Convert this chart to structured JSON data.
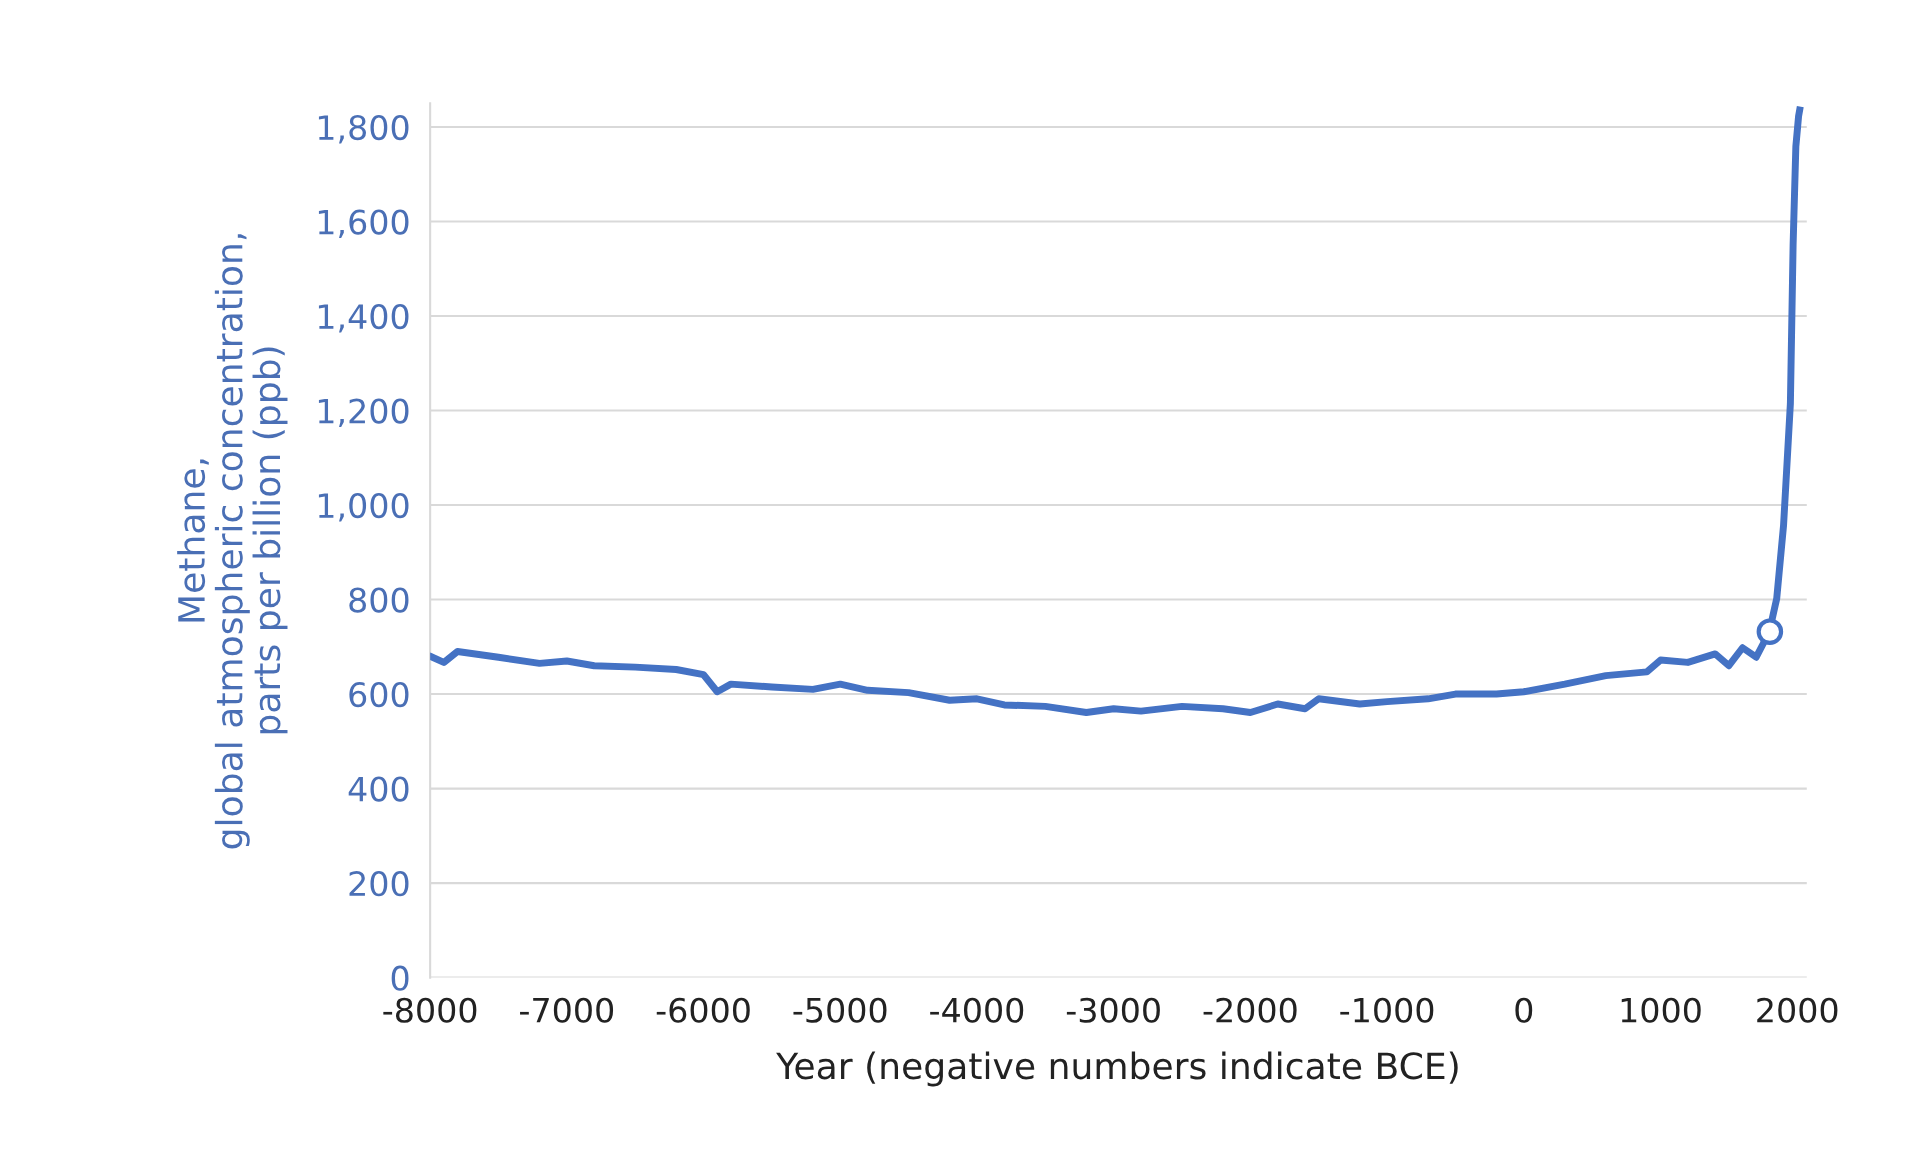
{
  "chart_data": {
    "type": "line",
    "xlabel": "Year (negative numbers indicate BCE)",
    "ylabel": "Methane,\nglobal atmospheric concentration,\nparts per billion (ppb)",
    "xlim": [
      -8000,
      2070
    ],
    "ylim": [
      0,
      1850
    ],
    "xticks": [
      -8000,
      -7000,
      -6000,
      -5000,
      -4000,
      -3000,
      -2000,
      -1000,
      0,
      1000,
      2000
    ],
    "yticks": [
      {
        "value": 0,
        "label": "0"
      },
      {
        "value": 200,
        "label": "200"
      },
      {
        "value": 400,
        "label": "400"
      },
      {
        "value": 600,
        "label": "600"
      },
      {
        "value": 800,
        "label": "800"
      },
      {
        "value": 1000,
        "label": "1,000"
      },
      {
        "value": 1200,
        "label": "1,200"
      },
      {
        "value": 1400,
        "label": "1,400"
      },
      {
        "value": 1600,
        "label": "1,600"
      },
      {
        "value": 1800,
        "label": "1,800"
      }
    ],
    "grid": "y",
    "legend": false,
    "series": [
      {
        "color": "#4472c4",
        "marker": "none",
        "line_style": "solid",
        "x": [
          -8000,
          -7900,
          -7800,
          -7500,
          -7200,
          -7000,
          -6800,
          -6500,
          -6200,
          -6000,
          -5900,
          -5800,
          -5500,
          -5200,
          -5000,
          -4800,
          -4500,
          -4200,
          -4000,
          -3800,
          -3500,
          -3200,
          -3000,
          -2800,
          -2500,
          -2200,
          -2000,
          -1800,
          -1600,
          -1500,
          -1200,
          -1000,
          -700,
          -500,
          -200,
          0,
          300,
          600,
          900,
          1000,
          1200,
          1400,
          1500,
          1600,
          1700,
          1750,
          1800,
          1850,
          1900,
          1950,
          1970,
          1990,
          2010,
          2018
        ],
        "values": [
          680,
          667,
          690,
          678,
          665,
          670,
          660,
          657,
          652,
          641,
          605,
          621,
          615,
          610,
          621,
          608,
          603,
          587,
          590,
          577,
          574,
          561,
          569,
          564,
          574,
          569,
          561,
          579,
          569,
          590,
          579,
          584,
          590,
          600,
          600,
          605,
          621,
          639,
          647,
          672,
          667,
          685,
          660,
          698,
          678,
          706,
          737,
          802,
          957,
          1215,
          1552,
          1759,
          1823,
          1836
        ]
      },
      {
        "type": "scatter",
        "color": "#4472c4",
        "marker": "circle",
        "x": [
          1800
        ],
        "values": [
          732
        ]
      }
    ]
  }
}
